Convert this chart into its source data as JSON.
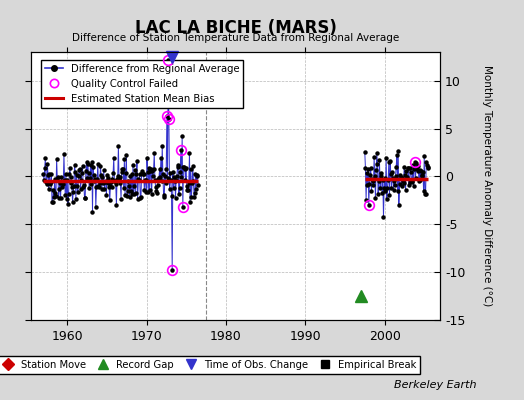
{
  "title": "LAC LA BICHE (MARS)",
  "subtitle": "Difference of Station Temperature Data from Regional Average",
  "ylabel": "Monthly Temperature Anomaly Difference (°C)",
  "xlabel_years": [
    1960,
    1970,
    1980,
    1990,
    2000
  ],
  "ylim": [
    -15,
    13
  ],
  "yticks": [
    -15,
    -10,
    -5,
    0,
    5,
    10
  ],
  "background_color": "#d8d8d8",
  "plot_bg_color": "#ffffff",
  "grid_color": "#b0b0b0",
  "line_color": "#3333cc",
  "marker_color": "#000000",
  "bias_color": "#cc0000",
  "qc_color": "#ff00ff",
  "segment1_start": 1957.0,
  "segment1_end": 1976.5,
  "segment2_start": 1997.5,
  "segment2_end": 2005.5,
  "bias1": -0.5,
  "bias2": -0.3,
  "gap_marker_x": 1997.0,
  "gap_marker_y": -12.5,
  "obs_change_x": 1973.2,
  "obs_change_top": true,
  "berkeley_earth_label": "Berkeley Earth",
  "xlim_left": 1955.5,
  "xlim_right": 2007.0,
  "gap_line_x": 1977.5,
  "legend1_items": [
    {
      "label": "Difference from Regional Average"
    },
    {
      "label": "Quality Control Failed"
    },
    {
      "label": "Estimated Station Mean Bias"
    }
  ],
  "legend2_items": [
    {
      "label": "Station Move",
      "color": "#cc0000",
      "marker": "D"
    },
    {
      "label": "Record Gap",
      "color": "#228B22",
      "marker": "^"
    },
    {
      "label": "Time of Obs. Change",
      "color": "#3333cc",
      "marker": "v"
    },
    {
      "label": "Empirical Break",
      "color": "#000000",
      "marker": "s"
    }
  ]
}
